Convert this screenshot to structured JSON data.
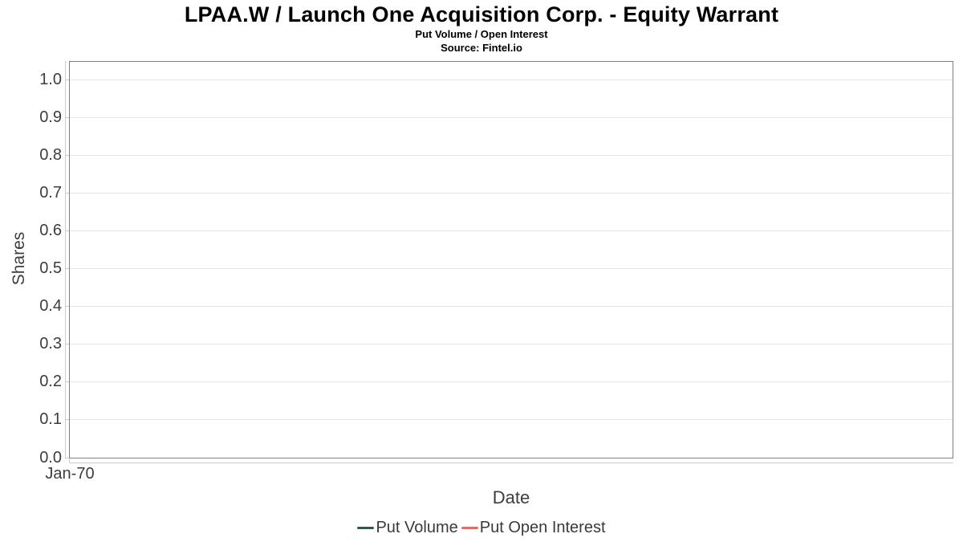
{
  "chart": {
    "title": "LPAA.W / Launch One Acquisition Corp. - Equity Warrant",
    "subtitle": "Put Volume / Open Interest",
    "source": "Source: Fintel.io",
    "xlabel": "Date",
    "ylabel": "Shares",
    "x_first_tick": "Jan-70"
  },
  "legend": {
    "items": [
      {
        "label": "Put Volume",
        "color": "#2d5c41"
      },
      {
        "label": "Put Open Interest",
        "color": "#f8625a"
      }
    ]
  },
  "colors": {
    "title_text": "#000000",
    "axis_text": "#3d3d3d",
    "gridline": "#e6e6e6",
    "plot_border": "#7f7f7f",
    "axis_line": "#cccccc",
    "background": "#ffffff"
  },
  "chart_data": {
    "type": "line",
    "title": "LPAA.W / Launch One Acquisition Corp. - Equity Warrant",
    "subtitle": "Put Volume / Open Interest",
    "source": "Source: Fintel.io",
    "xlabel": "Date",
    "ylabel": "Shares",
    "ylim": [
      0.0,
      1.05
    ],
    "y_tick_values": [
      0.0,
      0.1,
      0.2,
      0.3,
      0.4,
      0.5,
      0.6,
      0.7,
      0.8,
      0.9,
      1.0
    ],
    "y_tick_labels": [
      "0.0",
      "0.1",
      "0.2",
      "0.3",
      "0.4",
      "0.5",
      "0.6",
      "0.7",
      "0.8",
      "0.9",
      "1.0"
    ],
    "x_tick_labels": [
      "Jan-70"
    ],
    "grid": true,
    "legend_position": "bottom",
    "series": [
      {
        "name": "Put Volume",
        "color": "#2d5c41",
        "x": [],
        "values": []
      },
      {
        "name": "Put Open Interest",
        "color": "#f8625a",
        "x": [],
        "values": []
      }
    ]
  }
}
